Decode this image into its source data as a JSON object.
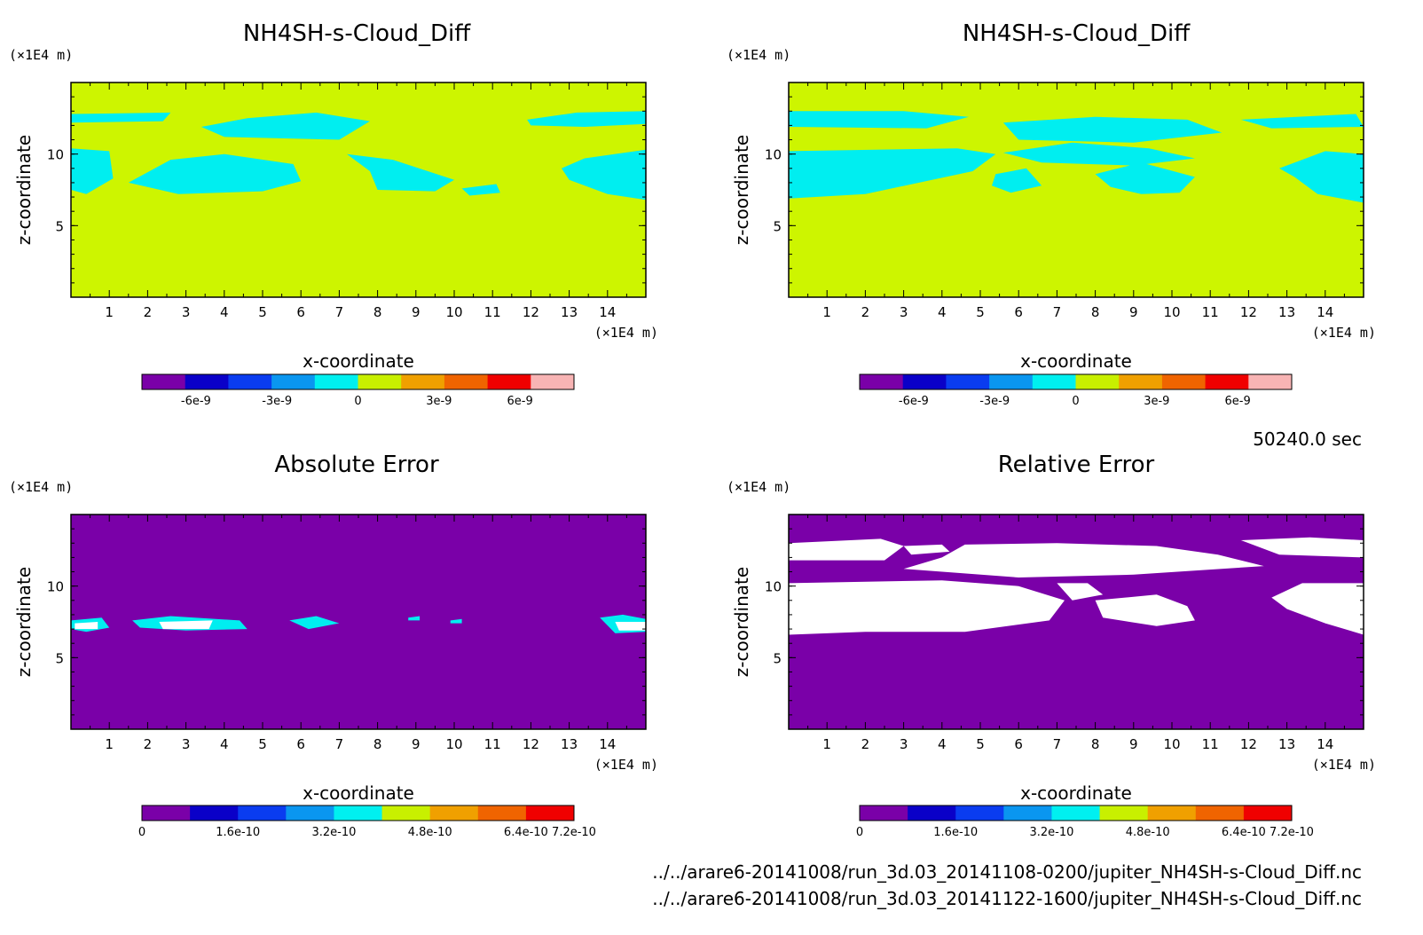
{
  "colors": {
    "div_scale": [
      "#7a00a8",
      "#0a00c8",
      "#0a3cf0",
      "#0a96f0",
      "#00f0f0",
      "#c8f000",
      "#f0a000",
      "#f06400",
      "#f00000",
      "#f8b4b4"
    ],
    "err_scale": [
      "#7a00a8",
      "#0a00c8",
      "#0a3cf0",
      "#0a96f0",
      "#00f0f0",
      "#c8f000",
      "#f0a000",
      "#f06400",
      "#f00000"
    ],
    "field_bg": "#cdf500",
    "cloud": "#00eef0",
    "abs_bg": "#7a00a8",
    "rel_bg": "#7a00a8",
    "rel_fill": "#ffffff"
  },
  "time_label": "50240.0 sec",
  "footer": [
    "../../arare6-20141008/run_3d.03_20141108-0200/jupiter_NH4SH-s-Cloud_Diff.nc",
    "../../arare6-20141008/run_3d.03_20141122-1600/jupiter_NH4SH-s-Cloud_Diff.nc"
  ],
  "chart_data": [
    {
      "type": "heatmap",
      "title": "NH4SH-s-Cloud_Diff",
      "xlabel": "x-coordinate",
      "ylabel": "z-coordinate",
      "x_unit": "(×1E4 m)",
      "y_unit": "(×1E4 m)",
      "xlim": [
        0,
        15
      ],
      "ylim": [
        0,
        15
      ],
      "x_ticks": [
        "1",
        "2",
        "3",
        "4",
        "5",
        "6",
        "7",
        "8",
        "9",
        "10",
        "11",
        "12",
        "13",
        "14"
      ],
      "y_ticks": [
        "5",
        "10"
      ],
      "colorbar": {
        "scale": "div_scale",
        "ticks": [
          {
            "v": -6e-09,
            "label": "-6e-9"
          },
          {
            "v": -3e-09,
            "label": "-3e-9"
          },
          {
            "v": 0,
            "label": "0"
          },
          {
            "v": 3e-09,
            "label": "3e-9"
          },
          {
            "v": 6e-09,
            "label": "6e-9"
          }
        ],
        "min": -8e-09,
        "max": 8e-09
      },
      "background": "field_bg",
      "regions": [
        {
          "color": "cloud",
          "shape": [
            [
              0,
              12.8
            ],
            [
              2.6,
              12.9
            ],
            [
              2.4,
              12.3
            ],
            [
              0,
              12.2
            ]
          ]
        },
        {
          "color": "cloud",
          "shape": [
            [
              4.6,
              12.5
            ],
            [
              6.4,
              12.9
            ],
            [
              7.8,
              12.3
            ],
            [
              7.0,
              11.0
            ],
            [
              4.0,
              11.2
            ],
            [
              3.4,
              11.9
            ]
          ]
        },
        {
          "color": "cloud",
          "shape": [
            [
              0,
              10.4
            ],
            [
              1.0,
              10.2
            ],
            [
              1.1,
              8.3
            ],
            [
              0.4,
              7.2
            ],
            [
              0,
              7.5
            ]
          ]
        },
        {
          "color": "cloud",
          "shape": [
            [
              1.5,
              8.0
            ],
            [
              2.6,
              9.6
            ],
            [
              4.0,
              10.0
            ],
            [
              5.8,
              9.3
            ],
            [
              6.0,
              8.1
            ],
            [
              5.0,
              7.4
            ],
            [
              2.8,
              7.2
            ]
          ]
        },
        {
          "color": "cloud",
          "shape": [
            [
              7.2,
              10.0
            ],
            [
              8.4,
              9.6
            ],
            [
              10.0,
              8.2
            ],
            [
              9.5,
              7.4
            ],
            [
              8.0,
              7.5
            ],
            [
              7.8,
              8.8
            ]
          ]
        },
        {
          "color": "cloud",
          "shape": [
            [
              10.2,
              7.6
            ],
            [
              11.1,
              7.9
            ],
            [
              11.2,
              7.3
            ],
            [
              10.4,
              7.1
            ]
          ]
        },
        {
          "color": "cloud",
          "shape": [
            [
              11.9,
              12.4
            ],
            [
              13.2,
              12.9
            ],
            [
              15.0,
              13.0
            ],
            [
              15.0,
              12.1
            ],
            [
              13.4,
              11.9
            ],
            [
              12.0,
              12.0
            ]
          ]
        },
        {
          "color": "cloud",
          "shape": [
            [
              12.8,
              9.0
            ],
            [
              13.4,
              9.7
            ],
            [
              15.0,
              10.3
            ],
            [
              15.0,
              6.8
            ],
            [
              14.0,
              7.2
            ],
            [
              13.0,
              8.2
            ]
          ]
        }
      ]
    },
    {
      "type": "heatmap",
      "title": "NH4SH-s-Cloud_Diff",
      "xlabel": "x-coordinate",
      "ylabel": "z-coordinate",
      "x_unit": "(×1E4 m)",
      "y_unit": "(×1E4 m)",
      "xlim": [
        0,
        15
      ],
      "ylim": [
        0,
        15
      ],
      "x_ticks": [
        "1",
        "2",
        "3",
        "4",
        "5",
        "6",
        "7",
        "8",
        "9",
        "10",
        "11",
        "12",
        "13",
        "14"
      ],
      "y_ticks": [
        "5",
        "10"
      ],
      "colorbar": {
        "scale": "div_scale",
        "ticks": [
          {
            "v": -6e-09,
            "label": "-6e-9"
          },
          {
            "v": -3e-09,
            "label": "-3e-9"
          },
          {
            "v": 0,
            "label": "0"
          },
          {
            "v": 3e-09,
            "label": "3e-9"
          },
          {
            "v": 6e-09,
            "label": "6e-9"
          }
        ],
        "min": -8e-09,
        "max": 8e-09
      },
      "background": "field_bg",
      "regions": [
        {
          "color": "cloud",
          "shape": [
            [
              0,
              13.0
            ],
            [
              3.0,
              13.0
            ],
            [
              4.7,
              12.6
            ],
            [
              3.6,
              11.8
            ],
            [
              0,
              11.9
            ]
          ]
        },
        {
          "color": "cloud",
          "shape": [
            [
              5.6,
              12.2
            ],
            [
              8.0,
              12.6
            ],
            [
              10.4,
              12.4
            ],
            [
              11.3,
              11.5
            ],
            [
              9.0,
              10.8
            ],
            [
              6.0,
              11.0
            ]
          ]
        },
        {
          "color": "cloud",
          "shape": [
            [
              0,
              10.2
            ],
            [
              4.4,
              10.4
            ],
            [
              5.4,
              10.0
            ],
            [
              4.8,
              8.8
            ],
            [
              2.0,
              7.2
            ],
            [
              0,
              6.9
            ]
          ]
        },
        {
          "color": "cloud",
          "shape": [
            [
              5.6,
              10.1
            ],
            [
              7.4,
              10.8
            ],
            [
              9.4,
              10.4
            ],
            [
              10.6,
              9.7
            ],
            [
              9.0,
              9.2
            ],
            [
              6.6,
              9.4
            ]
          ]
        },
        {
          "color": "cloud",
          "shape": [
            [
              5.4,
              8.6
            ],
            [
              6.2,
              9.0
            ],
            [
              6.6,
              7.8
            ],
            [
              5.8,
              7.3
            ],
            [
              5.3,
              7.8
            ]
          ]
        },
        {
          "color": "cloud",
          "shape": [
            [
              8.0,
              8.6
            ],
            [
              9.2,
              9.4
            ],
            [
              10.6,
              8.4
            ],
            [
              10.2,
              7.3
            ],
            [
              9.2,
              7.2
            ],
            [
              8.4,
              7.7
            ]
          ]
        },
        {
          "color": "cloud",
          "shape": [
            [
              11.8,
              12.4
            ],
            [
              14.8,
              12.8
            ],
            [
              15.0,
              11.9
            ],
            [
              12.6,
              11.8
            ]
          ]
        },
        {
          "color": "cloud",
          "shape": [
            [
              12.8,
              9.0
            ],
            [
              14.0,
              10.2
            ],
            [
              15.0,
              10.0
            ],
            [
              15.0,
              6.6
            ],
            [
              13.8,
              7.2
            ],
            [
              13.2,
              8.4
            ]
          ]
        }
      ]
    },
    {
      "type": "heatmap",
      "title": "Absolute Error",
      "xlabel": "x-coordinate",
      "ylabel": "z-coordinate",
      "x_unit": "(×1E4 m)",
      "y_unit": "(×1E4 m)",
      "xlim": [
        0,
        15
      ],
      "ylim": [
        0,
        15
      ],
      "x_ticks": [
        "1",
        "2",
        "3",
        "4",
        "5",
        "6",
        "7",
        "8",
        "9",
        "10",
        "11",
        "12",
        "13",
        "14"
      ],
      "y_ticks": [
        "5",
        "10"
      ],
      "colorbar": {
        "scale": "err_scale",
        "ticks": [
          {
            "v": 0,
            "label": "0"
          },
          {
            "v": 1.6e-10,
            "label": "1.6e-10"
          },
          {
            "v": 3.2e-10,
            "label": "3.2e-10"
          },
          {
            "v": 4.8e-10,
            "label": "4.8e-10"
          },
          {
            "v": 6.4e-10,
            "label": "6.4e-10"
          },
          {
            "v": 7.2e-10,
            "label": "7.2e-10"
          }
        ],
        "min": 0,
        "max": 7.2e-10
      },
      "background": "abs_bg",
      "regions": [
        {
          "color": "cloud",
          "shape": [
            [
              0,
              7.6
            ],
            [
              0.8,
              7.8
            ],
            [
              1.0,
              7.1
            ],
            [
              0.4,
              6.8
            ],
            [
              0,
              7.0
            ]
          ]
        },
        {
          "color": "cloud",
          "shape": [
            [
              1.6,
              7.6
            ],
            [
              2.6,
              7.9
            ],
            [
              4.4,
              7.6
            ],
            [
              4.6,
              7.0
            ],
            [
              3.0,
              6.9
            ],
            [
              1.8,
              7.1
            ]
          ]
        },
        {
          "color": "cloud",
          "shape": [
            [
              5.7,
              7.6
            ],
            [
              6.4,
              7.9
            ],
            [
              7.0,
              7.4
            ],
            [
              6.2,
              7.0
            ]
          ]
        },
        {
          "color": "cloud",
          "shape": [
            [
              13.8,
              7.8
            ],
            [
              14.4,
              8.0
            ],
            [
              15.0,
              7.7
            ],
            [
              15.0,
              6.8
            ],
            [
              14.2,
              6.7
            ]
          ]
        },
        {
          "color": "cloud",
          "shape": [
            [
              8.8,
              7.8
            ],
            [
              9.1,
              7.9
            ],
            [
              9.1,
              7.6
            ],
            [
              8.8,
              7.6
            ]
          ]
        },
        {
          "color": "cloud",
          "shape": [
            [
              9.9,
              7.6
            ],
            [
              10.2,
              7.7
            ],
            [
              10.2,
              7.4
            ],
            [
              9.9,
              7.4
            ]
          ]
        },
        {
          "color": "rel_fill",
          "shape": [
            [
              0.1,
              7.4
            ],
            [
              0.7,
              7.5
            ],
            [
              0.7,
              7.0
            ],
            [
              0.1,
              7.0
            ]
          ]
        },
        {
          "color": "rel_fill",
          "shape": [
            [
              2.3,
              7.5
            ],
            [
              3.7,
              7.6
            ],
            [
              3.6,
              7.0
            ],
            [
              2.4,
              7.0
            ]
          ]
        },
        {
          "color": "rel_fill",
          "shape": [
            [
              14.2,
              7.5
            ],
            [
              15.0,
              7.5
            ],
            [
              15.0,
              6.9
            ],
            [
              14.3,
              6.9
            ]
          ]
        }
      ]
    },
    {
      "type": "heatmap",
      "title": "Relative Error",
      "xlabel": "x-coordinate",
      "ylabel": "z-coordinate",
      "x_unit": "(×1E4 m)",
      "y_unit": "(×1E4 m)",
      "xlim": [
        0,
        15
      ],
      "ylim": [
        0,
        15
      ],
      "x_ticks": [
        "1",
        "2",
        "3",
        "4",
        "5",
        "6",
        "7",
        "8",
        "9",
        "10",
        "11",
        "12",
        "13",
        "14"
      ],
      "y_ticks": [
        "5",
        "10"
      ],
      "colorbar": {
        "scale": "err_scale",
        "ticks": [
          {
            "v": 0,
            "label": "0"
          },
          {
            "v": 1.6e-10,
            "label": "1.6e-10"
          },
          {
            "v": 3.2e-10,
            "label": "3.2e-10"
          },
          {
            "v": 4.8e-10,
            "label": "4.8e-10"
          },
          {
            "v": 6.4e-10,
            "label": "6.4e-10"
          },
          {
            "v": 7.2e-10,
            "label": "7.2e-10"
          }
        ],
        "min": 0,
        "max": 7.2e-10
      },
      "background": "rel_bg",
      "regions": [
        {
          "color": "rel_fill",
          "shape": [
            [
              0,
              13.0
            ],
            [
              2.4,
              13.3
            ],
            [
              3.0,
              12.8
            ],
            [
              2.5,
              11.8
            ],
            [
              0,
              11.8
            ]
          ]
        },
        {
          "color": "rel_fill",
          "shape": [
            [
              3.0,
              12.8
            ],
            [
              4.0,
              12.9
            ],
            [
              4.2,
              12.4
            ],
            [
              3.2,
              12.2
            ]
          ]
        },
        {
          "color": "rel_fill",
          "shape": [
            [
              4.6,
              12.9
            ],
            [
              7.0,
              13.0
            ],
            [
              9.6,
              12.8
            ],
            [
              11.2,
              12.2
            ],
            [
              12.4,
              11.4
            ],
            [
              9.0,
              10.8
            ],
            [
              6.0,
              10.6
            ],
            [
              3.0,
              11.2
            ],
            [
              4.0,
              12.0
            ]
          ]
        },
        {
          "color": "rel_fill",
          "shape": [
            [
              0,
              10.2
            ],
            [
              4.0,
              10.4
            ],
            [
              6.0,
              10.0
            ],
            [
              7.2,
              9.0
            ],
            [
              6.8,
              7.6
            ],
            [
              4.6,
              6.8
            ],
            [
              2.0,
              6.8
            ],
            [
              0,
              6.6
            ]
          ]
        },
        {
          "color": "rel_fill",
          "shape": [
            [
              7.0,
              10.2
            ],
            [
              7.8,
              10.2
            ],
            [
              8.2,
              9.4
            ],
            [
              7.4,
              9.0
            ]
          ]
        },
        {
          "color": "rel_fill",
          "shape": [
            [
              8.0,
              9.0
            ],
            [
              9.6,
              9.4
            ],
            [
              10.4,
              8.6
            ],
            [
              10.6,
              7.6
            ],
            [
              9.6,
              7.2
            ],
            [
              8.2,
              7.8
            ]
          ]
        },
        {
          "color": "rel_fill",
          "shape": [
            [
              11.8,
              13.2
            ],
            [
              13.6,
              13.4
            ],
            [
              15.0,
              13.2
            ],
            [
              15.0,
              12.0
            ],
            [
              12.8,
              12.2
            ]
          ]
        },
        {
          "color": "rel_fill",
          "shape": [
            [
              12.6,
              9.2
            ],
            [
              13.4,
              10.2
            ],
            [
              15.0,
              10.2
            ],
            [
              15.0,
              6.6
            ],
            [
              14.0,
              7.4
            ],
            [
              13.0,
              8.4
            ]
          ]
        }
      ]
    }
  ]
}
